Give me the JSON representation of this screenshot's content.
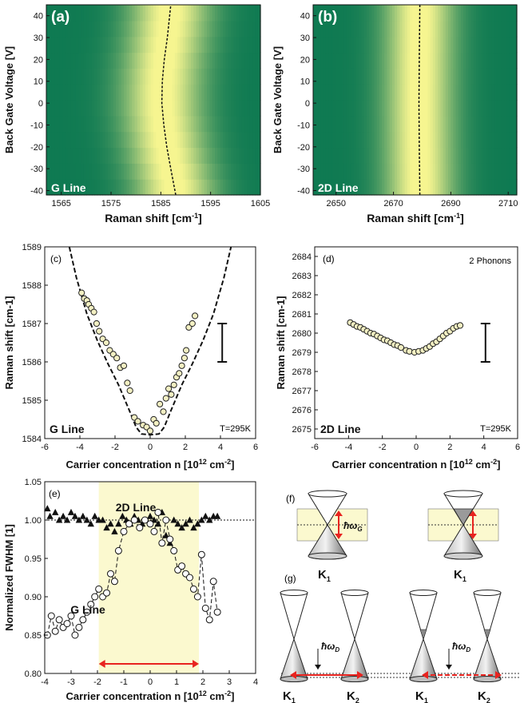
{
  "colors": {
    "heat_low": "#0f7a52",
    "heat_high": "#f6f590",
    "shade": "#fbf9cf",
    "arrow": "#e8231f"
  },
  "chart_data": [
    {
      "panel": "a",
      "type": "heatmap",
      "tag": "(a)",
      "label": "G Line",
      "xlabel": "Raman shift  [cm",
      "xlabel_sup": "-1",
      "xlabel_end": "]",
      "ylabel": "Back Gate Voltage  [V]",
      "xlim": [
        1562,
        1605
      ],
      "ylim": [
        -42,
        45
      ],
      "xticks": [
        1565,
        1575,
        1585,
        1595,
        1605
      ],
      "yticks": [
        -40,
        -30,
        -20,
        -10,
        0,
        10,
        20,
        30,
        40
      ],
      "peak_center": 1587,
      "peak_width": 6,
      "fit_line": {
        "x": [
          1588.0,
          1587.0,
          1586.2,
          1585.6,
          1585.2,
          1585.3,
          1585.7,
          1586.3,
          1587.0
        ],
        "y": [
          -42,
          -30,
          -20,
          -10,
          0,
          10,
          20,
          30,
          45
        ]
      }
    },
    {
      "panel": "b",
      "type": "heatmap",
      "tag": "(b)",
      "label": "2D Line",
      "xlabel": "Raman shift  [cm",
      "xlabel_sup": "-1",
      "xlabel_end": "]",
      "ylabel": "Back Gate Voltage  [V]",
      "xlim": [
        2642,
        2713
      ],
      "ylim": [
        -42,
        45
      ],
      "xticks": [
        2650,
        2670,
        2690,
        2710
      ],
      "yticks": [
        -40,
        -30,
        -20,
        -10,
        0,
        10,
        20,
        30,
        40
      ],
      "peak_center": 2680,
      "peak_width": 9,
      "fit_line": {
        "x": [
          2679.2,
          2679.0,
          2678.9,
          2679.0,
          2679.2
        ],
        "y": [
          -42,
          -20,
          0,
          20,
          45
        ]
      }
    },
    {
      "panel": "c",
      "type": "scatter",
      "tag": "(c)",
      "label": "G Line",
      "temperature": "T=295K",
      "xlabel": "Carrier concentration n [10",
      "xlabel_sup": "12",
      "xlabel_end": " cm",
      "xlabel_sup2": "-2",
      "xlabel_end2": "]",
      "ylabel": "Raman shift  [cm-1]",
      "xlim": [
        -6,
        6
      ],
      "ylim": [
        1584,
        1589
      ],
      "xticks": [
        -6,
        -4,
        -2,
        0,
        2,
        4,
        6
      ],
      "yticks": [
        1584,
        1585,
        1586,
        1587,
        1588,
        1589
      ],
      "points": [
        [
          -3.9,
          1587.8
        ],
        [
          -3.75,
          1587.65
        ],
        [
          -3.6,
          1587.6
        ],
        [
          -3.5,
          1587.5
        ],
        [
          -3.35,
          1587.4
        ],
        [
          -3.2,
          1587.3
        ],
        [
          -3.05,
          1587.0
        ],
        [
          -2.9,
          1586.8
        ],
        [
          -2.7,
          1586.6
        ],
        [
          -2.5,
          1586.5
        ],
        [
          -2.3,
          1586.3
        ],
        [
          -2.1,
          1586.2
        ],
        [
          -1.9,
          1586.1
        ],
        [
          -1.7,
          1585.85
        ],
        [
          -1.5,
          1585.9
        ],
        [
          -1.3,
          1585.45
        ],
        [
          -1.15,
          1585.25
        ],
        [
          -0.9,
          1584.55
        ],
        [
          -0.7,
          1584.45
        ],
        [
          -0.4,
          1584.35
        ],
        [
          -0.2,
          1584.3
        ],
        [
          0.0,
          1584.2
        ],
        [
          0.2,
          1584.5
        ],
        [
          0.35,
          1584.4
        ],
        [
          0.55,
          1584.9
        ],
        [
          0.75,
          1584.7
        ],
        [
          0.9,
          1585.05
        ],
        [
          1.05,
          1585.3
        ],
        [
          1.2,
          1585.15
        ],
        [
          1.35,
          1585.4
        ],
        [
          1.5,
          1585.6
        ],
        [
          1.65,
          1585.7
        ],
        [
          1.8,
          1585.9
        ],
        [
          1.95,
          1586.1
        ],
        [
          2.05,
          1586.3
        ],
        [
          2.2,
          1586.9
        ],
        [
          2.4,
          1587.0
        ],
        [
          2.55,
          1587.2
        ]
      ],
      "fit_curve": [
        [
          -4.6,
          1589.0
        ],
        [
          -4.2,
          1588.2
        ],
        [
          -3.6,
          1587.25
        ],
        [
          -3.0,
          1586.55
        ],
        [
          -2.4,
          1585.95
        ],
        [
          -1.8,
          1585.4
        ],
        [
          -1.2,
          1584.75
        ],
        [
          -0.8,
          1584.3
        ],
        [
          -0.5,
          1584.12
        ],
        [
          0.0,
          1584.1
        ],
        [
          0.5,
          1584.12
        ],
        [
          0.8,
          1584.3
        ],
        [
          1.2,
          1584.75
        ],
        [
          1.8,
          1585.4
        ],
        [
          2.4,
          1585.95
        ],
        [
          3.0,
          1586.55
        ],
        [
          3.6,
          1587.25
        ],
        [
          4.2,
          1588.2
        ],
        [
          4.6,
          1589.0
        ]
      ],
      "error_bar": {
        "x": 4.1,
        "low": 1586.0,
        "high": 1587.0
      }
    },
    {
      "panel": "d",
      "type": "scatter",
      "tag": "(d)",
      "label": "2D Line",
      "note": "2 Phonons",
      "temperature": "T=295K",
      "xlabel": "Carrier concentration n [10",
      "xlabel_sup": "12",
      "xlabel_end": " cm",
      "xlabel_sup2": "-2",
      "xlabel_end2": "]",
      "ylabel": "Raman shift  [cm-1]",
      "xlim": [
        -6,
        6
      ],
      "ylim": [
        2674.5,
        2684.5
      ],
      "xticks": [
        -6,
        -4,
        -2,
        0,
        2,
        4,
        6
      ],
      "yticks": [
        2675,
        2676,
        2677,
        2678,
        2679,
        2680,
        2681,
        2682,
        2683,
        2684
      ],
      "points": [
        [
          -3.9,
          2680.55
        ],
        [
          -3.7,
          2680.45
        ],
        [
          -3.5,
          2680.35
        ],
        [
          -3.3,
          2680.3
        ],
        [
          -3.1,
          2680.2
        ],
        [
          -2.9,
          2680.1
        ],
        [
          -2.7,
          2680.0
        ],
        [
          -2.5,
          2679.95
        ],
        [
          -2.3,
          2679.85
        ],
        [
          -2.1,
          2679.75
        ],
        [
          -1.9,
          2679.65
        ],
        [
          -1.7,
          2679.6
        ],
        [
          -1.5,
          2679.5
        ],
        [
          -1.3,
          2679.4
        ],
        [
          -1.1,
          2679.35
        ],
        [
          -0.9,
          2679.25
        ],
        [
          -0.6,
          2679.1
        ],
        [
          -0.4,
          2679.05
        ],
        [
          -0.1,
          2679.0
        ],
        [
          0.15,
          2679.05
        ],
        [
          0.4,
          2679.1
        ],
        [
          0.6,
          2679.2
        ],
        [
          0.8,
          2679.3
        ],
        [
          1.0,
          2679.45
        ],
        [
          1.2,
          2679.55
        ],
        [
          1.4,
          2679.7
        ],
        [
          1.6,
          2679.85
        ],
        [
          1.8,
          2680.0
        ],
        [
          2.0,
          2680.1
        ],
        [
          2.2,
          2680.25
        ],
        [
          2.4,
          2680.35
        ],
        [
          2.6,
          2680.4
        ]
      ],
      "error_bar": {
        "x": 4.1,
        "low": 2678.5,
        "high": 2680.5
      }
    },
    {
      "panel": "e",
      "type": "scatter",
      "tag": "(e)",
      "label_top": "2D Line",
      "label_bottom": "G Line",
      "xlabel": "Carrier concentration n [10",
      "xlabel_sup": "12",
      "xlabel_end": " cm",
      "xlabel_sup2": "-2",
      "xlabel_end2": "]",
      "ylabel": "Normalized FWHM [1]",
      "xlim": [
        -4,
        4
      ],
      "ylim": [
        0.8,
        1.05
      ],
      "xticks": [
        -4,
        -3,
        -2,
        -1,
        0,
        1,
        2,
        3,
        4
      ],
      "yticks": [
        0.8,
        0.85,
        0.9,
        0.95,
        1.0,
        1.05
      ],
      "shaded_range": [
        -1.95,
        1.85
      ],
      "reference_line": 1.0,
      "series": [
        {
          "name": "2D Line",
          "marker": "triangle",
          "x": [
            -3.9,
            -3.8,
            -3.6,
            -3.45,
            -3.3,
            -3.15,
            -3.0,
            -2.85,
            -2.7,
            -2.55,
            -2.4,
            -2.25,
            -2.1,
            -1.95,
            -1.8,
            -1.65,
            -1.5,
            -1.35,
            -1.2,
            -1.05,
            -0.9,
            -0.75,
            -0.6,
            -0.45,
            -0.3,
            -0.15,
            0.0,
            0.15,
            0.3,
            0.45,
            0.6,
            0.75,
            0.9,
            1.05,
            1.2,
            1.35,
            1.5,
            1.65,
            1.8,
            1.95,
            2.1,
            2.25,
            2.4,
            2.55
          ],
          "y": [
            1.015,
            1.005,
            1.01,
            1.0,
            1.005,
            1.0,
            1.01,
            1.005,
            1.0,
            1.005,
            1.0,
            0.995,
            1.005,
            1.0,
            1.0,
            0.99,
            0.995,
            0.985,
            0.995,
            1.005,
            1.0,
            0.995,
            1.005,
            1.0,
            0.995,
            1.0,
            1.005,
            1.0,
            0.995,
            1.01,
            0.98,
            0.97,
            1.0,
            0.995,
            0.99,
            0.995,
            1.0,
            0.99,
            0.995,
            1.0,
            1.005,
            1.0,
            1.005,
            1.005
          ]
        },
        {
          "name": "G Line",
          "marker": "circle",
          "x": [
            -3.9,
            -3.75,
            -3.6,
            -3.45,
            -3.3,
            -3.15,
            -3.0,
            -2.85,
            -2.7,
            -2.55,
            -2.4,
            -2.25,
            -2.1,
            -1.95,
            -1.8,
            -1.65,
            -1.5,
            -1.35,
            -1.2,
            -1.0,
            -0.8,
            -0.6,
            -0.4,
            -0.2,
            0.0,
            0.15,
            0.3,
            0.45,
            0.6,
            0.75,
            0.9,
            1.05,
            1.2,
            1.35,
            1.5,
            1.65,
            1.8,
            1.95,
            2.1,
            2.25,
            2.4,
            2.55
          ],
          "y": [
            0.85,
            0.875,
            0.855,
            0.87,
            0.86,
            0.865,
            0.875,
            0.85,
            0.86,
            0.87,
            0.88,
            0.89,
            0.9,
            0.91,
            0.9,
            0.905,
            0.93,
            0.92,
            0.96,
            0.985,
            0.995,
            1.0,
            0.99,
            1.0,
            0.995,
            0.985,
            1.01,
            0.97,
            1.0,
            0.975,
            0.96,
            0.935,
            0.94,
            0.93,
            0.925,
            0.91,
            0.9,
            0.955,
            0.885,
            0.87,
            0.92,
            0.88
          ]
        }
      ]
    }
  ],
  "diagram": {
    "f": {
      "tag": "(f)",
      "energy": "ħω",
      "energy_sub": "G",
      "left_label": "K",
      "left_sub": "1",
      "right_label": "K",
      "right_sub": "1"
    },
    "g": {
      "tag": "(g)",
      "energy": "ħω",
      "energy_sub": "D",
      "cones": [
        {
          "label": "K",
          "sub": "1"
        },
        {
          "label": "K",
          "sub": "2"
        },
        {
          "label": "K",
          "sub": "1"
        },
        {
          "label": "K",
          "sub": "2"
        }
      ]
    }
  }
}
